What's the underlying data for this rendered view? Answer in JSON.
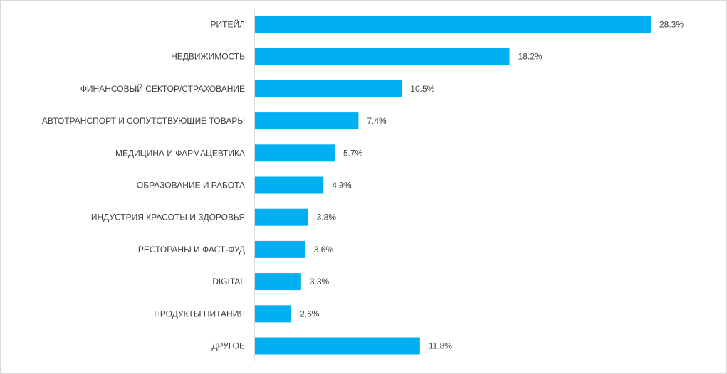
{
  "chart_data": {
    "type": "bar",
    "orientation": "horizontal",
    "categories": [
      "РИТЕЙЛ",
      "НЕДВИЖИМОСТЬ",
      "ФИНАНСОВЫЙ СЕКТОР/СТРАХОВАНИЕ",
      "АВТОТРАНСПОРТ И СОПУТСТВУЮЩИЕ ТОВАРЫ",
      "МЕДИЦИНА И ФАРМАЦЕВТИКА",
      "ОБРАЗОВАНИЕ И РАБОТА",
      "ИНДУСТРИЯ КРАСОТЫ И ЗДОРОВЬЯ",
      "РЕСТОРАНЫ И ФАСТ-ФУД",
      "DIGITAL",
      "ПРОДУКТЫ ПИТАНИЯ",
      "ДРУГОЕ"
    ],
    "values": [
      28.3,
      18.2,
      10.5,
      7.4,
      5.7,
      4.9,
      3.8,
      3.6,
      3.3,
      2.6,
      11.8
    ],
    "value_labels": [
      "28.3%",
      "18.2%",
      "10.5%",
      "7.4%",
      "5.7%",
      "4.9%",
      "3.8%",
      "3.6%",
      "3.3%",
      "2.6%",
      "11.8%"
    ],
    "title": "",
    "xlabel": "",
    "ylabel": "",
    "xlim": [
      0,
      28.3
    ],
    "grid": false,
    "legend": "none",
    "bar_color": "#00B0F0",
    "axis_color": "#d9d9d9",
    "text_color": "#404040"
  }
}
